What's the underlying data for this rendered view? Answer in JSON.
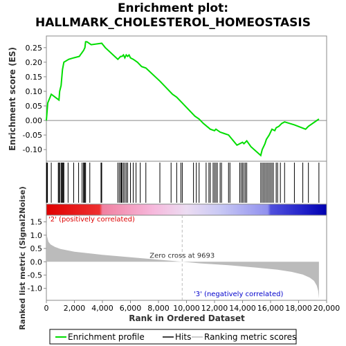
{
  "chart_data": {
    "type": "line",
    "title_line1": "Enrichment plot:",
    "title_line2": "HALLMARK_CHOLESTEROL_HOMEOSTASIS",
    "es_panel": {
      "ylabel": "Enrichment score (ES)",
      "ylim": [
        -0.14,
        0.29
      ],
      "yticks": [
        -0.1,
        -0.05,
        0.0,
        0.05,
        0.1,
        0.15,
        0.2,
        0.25
      ],
      "ytick_labels": [
        "-0.10",
        "-0.05",
        "0.00",
        "0.05",
        "0.10",
        "0.15",
        "0.20",
        "0.25"
      ],
      "line_color": "#00dd00",
      "x": [
        0,
        100,
        350,
        900,
        950,
        1050,
        1150,
        1250,
        1600,
        1950,
        2350,
        2650,
        2750,
        2800,
        2900,
        3200,
        3950,
        4200,
        5100,
        5300,
        5400,
        5500,
        5600,
        5700,
        5800,
        5900,
        6000,
        6200,
        6500,
        6800,
        7100,
        8100,
        9000,
        9300,
        9700,
        10600,
        10900,
        11200,
        11700,
        12000,
        12100,
        12400,
        12700,
        13000,
        13600,
        14000,
        14100,
        14300,
        14600,
        15300,
        15400,
        15600,
        15700,
        15900,
        16000,
        16100,
        16300,
        16400,
        16600,
        16800,
        17000,
        17700,
        18500,
        18700,
        19450
      ],
      "y": [
        0.0,
        0.06,
        0.09,
        0.07,
        0.1,
        0.12,
        0.175,
        0.2,
        0.21,
        0.215,
        0.22,
        0.24,
        0.25,
        0.27,
        0.27,
        0.26,
        0.265,
        0.25,
        0.21,
        0.22,
        0.22,
        0.225,
        0.215,
        0.225,
        0.22,
        0.225,
        0.215,
        0.21,
        0.2,
        0.185,
        0.18,
        0.135,
        0.09,
        0.08,
        0.06,
        0.015,
        0.005,
        -0.01,
        -0.03,
        -0.035,
        -0.03,
        -0.04,
        -0.045,
        -0.05,
        -0.085,
        -0.075,
        -0.08,
        -0.07,
        -0.09,
        -0.12,
        -0.1,
        -0.08,
        -0.065,
        -0.05,
        -0.04,
        -0.03,
        -0.035,
        -0.025,
        -0.02,
        -0.01,
        -0.005,
        -0.015,
        -0.03,
        -0.02,
        0.005
      ]
    },
    "hits": [
      10,
      40,
      80,
      350,
      850,
      900,
      950,
      1050,
      1100,
      1150,
      1200,
      1250,
      1550,
      1950,
      2300,
      2550,
      2650,
      2700,
      2750,
      2800,
      3100,
      3900,
      3950,
      5100,
      5200,
      5300,
      5350,
      5400,
      5500,
      5600,
      5700,
      5800,
      6000,
      6200,
      6400,
      6700,
      7100,
      8100,
      8900,
      9300,
      9600,
      9700,
      10500,
      10700,
      10900,
      11400,
      11600,
      11700,
      11900,
      12000,
      12100,
      12200,
      12400,
      12500,
      13000,
      13100,
      13800,
      13900,
      14000,
      14100,
      14200,
      14300,
      15300,
      15400,
      15500,
      15600,
      15700,
      15800,
      15900,
      16000,
      16100,
      16200,
      16400,
      16500,
      16700,
      17000,
      17700,
      18300,
      18700,
      19450
    ],
    "ranking": {
      "ylabel": "Ranked list metric (Signal2Noise)",
      "ylim": [
        -1.45,
        1.75
      ],
      "yticks": [
        -1.0,
        -0.5,
        0.0,
        0.5,
        1.0,
        1.5
      ],
      "ytick_labels": [
        "-1.0",
        "-0.5",
        "0.0",
        "0.5",
        "1.0",
        "1.5"
      ],
      "x": [
        0,
        50,
        150,
        300,
        600,
        1000,
        2000,
        4000,
        6000,
        8000,
        9693,
        11000,
        13000,
        15000,
        16500,
        17500,
        18300,
        18800,
        19100,
        19300,
        19400,
        19450
      ],
      "y": [
        1.6,
        0.95,
        0.75,
        0.65,
        0.56,
        0.48,
        0.38,
        0.26,
        0.17,
        0.08,
        0.0,
        -0.06,
        -0.13,
        -0.22,
        -0.3,
        -0.38,
        -0.48,
        -0.6,
        -0.72,
        -0.9,
        -1.1,
        -1.38
      ]
    },
    "xlabel": "Rank in Dataset",
    "xlim": [
      0,
      20000
    ],
    "xticks": [
      0,
      2000,
      4000,
      6000,
      8000,
      10000,
      12000,
      14000,
      16000,
      18000,
      20000
    ],
    "xtick_labels": [
      "0",
      "2,000",
      "4,000",
      "6,000",
      "8,000",
      "10,000",
      "12,000",
      "14,000",
      "16,000",
      "18,000",
      "20,000"
    ],
    "xlabel_full": "Rank in Ordered Dataset",
    "zero_cross": 9693,
    "zero_cross_label": "Zero cross at 9693",
    "pos_label": "'2' (positively correlated)",
    "neg_label": "'3' (negatively correlated)",
    "pos_color": "#dd0000",
    "neg_color": "#0000cc",
    "legend": [
      {
        "label": "Enrichment profile",
        "color": "#00dd00"
      },
      {
        "label": "Hits",
        "color": "#000000"
      },
      {
        "label": "Ranking metric scores",
        "color": "#bbbbbb"
      }
    ]
  }
}
